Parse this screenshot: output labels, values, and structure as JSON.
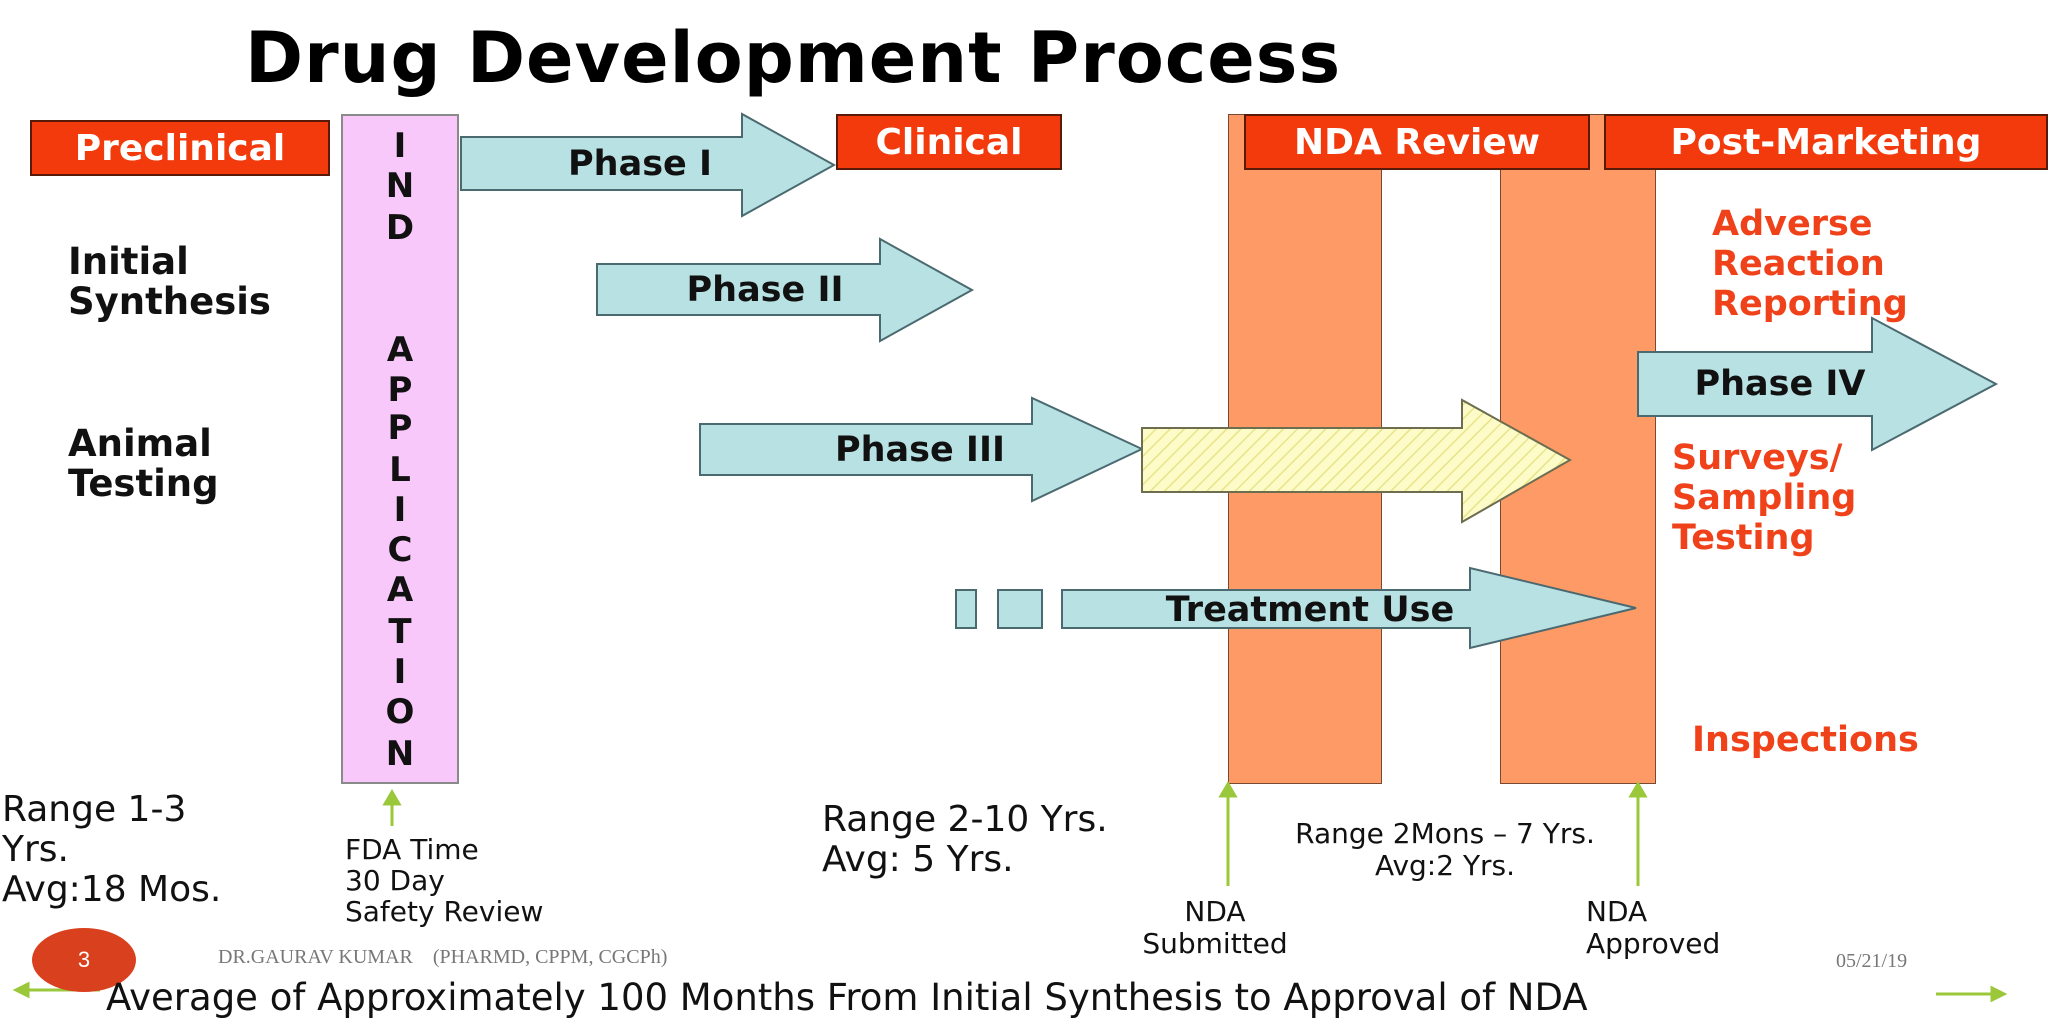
{
  "title": "Drug Development Process",
  "headers": {
    "preclinical": "Preclinical",
    "clinical": "Clinical",
    "nda_review": "NDA Review",
    "post_marketing": "Post-Marketing"
  },
  "preclinical_items": [
    "Initial\nSynthesis",
    "Animal\nTesting"
  ],
  "ind_letters": [
    "I",
    "N",
    "D",
    "A",
    "P",
    "P",
    "L",
    "I",
    "C",
    "A",
    "T",
    "I",
    "O",
    "N"
  ],
  "phases": {
    "phase1": "Phase I",
    "phase2": "Phase II",
    "phase3": "Phase III",
    "phase4": "Phase IV",
    "treatment_use": "Treatment Use"
  },
  "post_marketing_items": {
    "adverse": "Adverse\nReaction\nReporting",
    "surveys": "Surveys/\nSampling\nTesting",
    "inspections": "Inspections"
  },
  "ranges": {
    "preclinical": "Range 1-3\nYrs.\nAvg:18 Mos.",
    "fda_time": "FDA Time\n30 Day\nSafety Review",
    "clinical": "Range 2-10 Yrs.\nAvg: 5 Yrs.",
    "nda": "Range 2Mons – 7 Yrs.\nAvg:2 Yrs."
  },
  "markers": {
    "submitted": "NDA\nSubmitted",
    "approved": "NDA\nApproved"
  },
  "footer": {
    "page_number": "3",
    "author": "DR.GAURAV KUMAR    (PHARMD, CPPM, CGCPh)",
    "date": "05/21/19",
    "summary": "Average of Approximately 100 Months From Initial Synthesis to Approval of NDA"
  },
  "colors": {
    "header_red": "#f23a0c",
    "ind_pink": "#f9c8fa",
    "arrow_teal": "#b8e1e4",
    "nda_orange": "#fe9a66",
    "post_marketing_text": "#f0421a",
    "marker_green": "#9ac83a",
    "page_badge": "#d9411e"
  },
  "icons": {
    "arrow_up": "green-up-arrow-icon",
    "page_badge": "circle-badge-icon"
  }
}
